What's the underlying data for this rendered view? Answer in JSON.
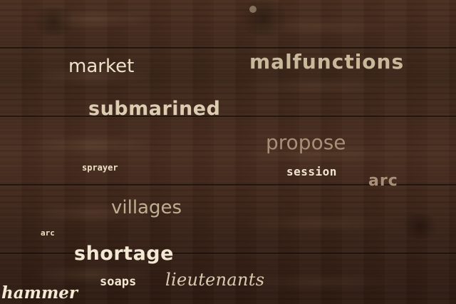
{
  "words": {
    "market": "market",
    "malfunctions": "malfunctions",
    "submarined": "submarined",
    "propose": "propose",
    "sprayer": "sprayer",
    "session": "session",
    "arc_right": "arc",
    "villages": "villages",
    "arc_left": "arc",
    "shortage": "shortage",
    "soaps": "soaps",
    "lieutenants": "lieutenants",
    "hammer": "hammer"
  },
  "colors": {
    "wood_dark": "#2f1c12",
    "wood_mid": "#4a2f20",
    "text_light": "#f3e8d3",
    "text_muted": "#a88f78"
  }
}
